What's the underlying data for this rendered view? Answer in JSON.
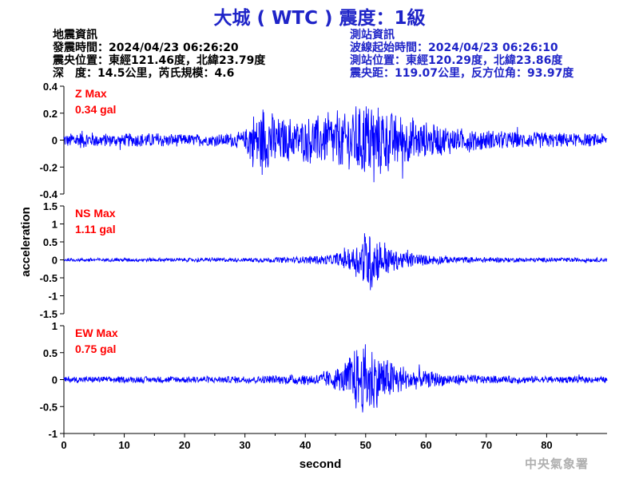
{
  "title": "大城 ( WTC ) 震度：1級",
  "earthquake_info": {
    "heading": "地震資訊",
    "origin_time": "發震時間：2024/04/23 06:26:20",
    "epicenter": "震央位置：東經121.46度，北緯23.79度",
    "depth_magnitude": "深　度：14.5公里，芮氏規模：4.6"
  },
  "station_info": {
    "heading": "測站資訊",
    "wave_start": "波線起始時間：2024/04/23 06:26:10",
    "station_location": "測站位置：東經120.29度，北緯23.86度",
    "epicentral_distance": "震央距：119.07公里，反方位角：93.97度"
  },
  "watermark": "中央氣象署",
  "colors": {
    "title": "#1f24c8",
    "trace": "#0000ff",
    "max_label": "#ff0000",
    "info_right": "#1f24c8"
  },
  "chart_data": {
    "type": "line",
    "xlabel": "second",
    "ylabel": "acceleration",
    "xlim": [
      0,
      90
    ],
    "x_ticks": [
      0,
      10,
      20,
      30,
      40,
      50,
      60,
      70,
      80
    ],
    "panels": [
      {
        "component": "Z",
        "max_label": "Z Max",
        "max_value": "0.34 gal",
        "ylim": [
          -0.4,
          0.4
        ],
        "y_ticks": [
          "0.4",
          "0.2",
          "0",
          "-0.2",
          "-0.4"
        ],
        "envelope": [
          {
            "t": 0,
            "a": 0.05
          },
          {
            "t": 3,
            "a": 0.07
          },
          {
            "t": 6,
            "a": 0.05
          },
          {
            "t": 10,
            "a": 0.05
          },
          {
            "t": 14,
            "a": 0.06
          },
          {
            "t": 20,
            "a": 0.045
          },
          {
            "t": 26,
            "a": 0.05
          },
          {
            "t": 30,
            "a": 0.07
          },
          {
            "t": 31,
            "a": 0.2
          },
          {
            "t": 33,
            "a": 0.28
          },
          {
            "t": 36,
            "a": 0.18
          },
          {
            "t": 39,
            "a": 0.17
          },
          {
            "t": 43,
            "a": 0.2
          },
          {
            "t": 47,
            "a": 0.24
          },
          {
            "t": 50,
            "a": 0.32
          },
          {
            "t": 52,
            "a": 0.3
          },
          {
            "t": 55,
            "a": 0.22
          },
          {
            "t": 60,
            "a": 0.14
          },
          {
            "t": 65,
            "a": 0.1
          },
          {
            "t": 72,
            "a": 0.07
          },
          {
            "t": 80,
            "a": 0.06
          },
          {
            "t": 90,
            "a": 0.05
          }
        ]
      },
      {
        "component": "NS",
        "max_label": "NS Max",
        "max_value": "1.11 gal",
        "ylim": [
          -1.5,
          1.5
        ],
        "y_ticks": [
          "1.5",
          "1",
          "0.5",
          "0",
          "-0.5",
          "-1",
          "-1.5"
        ],
        "envelope": [
          {
            "t": 0,
            "a": 0.05
          },
          {
            "t": 30,
            "a": 0.06
          },
          {
            "t": 38,
            "a": 0.09
          },
          {
            "t": 44,
            "a": 0.15
          },
          {
            "t": 47,
            "a": 0.3
          },
          {
            "t": 49,
            "a": 0.55
          },
          {
            "t": 50.5,
            "a": 1.1
          },
          {
            "t": 52,
            "a": 0.7
          },
          {
            "t": 55,
            "a": 0.3
          },
          {
            "t": 60,
            "a": 0.15
          },
          {
            "t": 68,
            "a": 0.08
          },
          {
            "t": 90,
            "a": 0.06
          }
        ]
      },
      {
        "component": "EW",
        "max_label": "EW Max",
        "max_value": "0.75 gal",
        "ylim": [
          -1,
          1
        ],
        "y_ticks": [
          "1",
          "0.5",
          "0",
          "-0.5",
          "-1"
        ],
        "envelope": [
          {
            "t": 0,
            "a": 0.06
          },
          {
            "t": 30,
            "a": 0.07
          },
          {
            "t": 36,
            "a": 0.09
          },
          {
            "t": 42,
            "a": 0.13
          },
          {
            "t": 46,
            "a": 0.25
          },
          {
            "t": 48,
            "a": 0.6
          },
          {
            "t": 50.5,
            "a": 0.72
          },
          {
            "t": 53,
            "a": 0.45
          },
          {
            "t": 57,
            "a": 0.22
          },
          {
            "t": 63,
            "a": 0.12
          },
          {
            "t": 70,
            "a": 0.08
          },
          {
            "t": 90,
            "a": 0.06
          }
        ]
      }
    ]
  }
}
